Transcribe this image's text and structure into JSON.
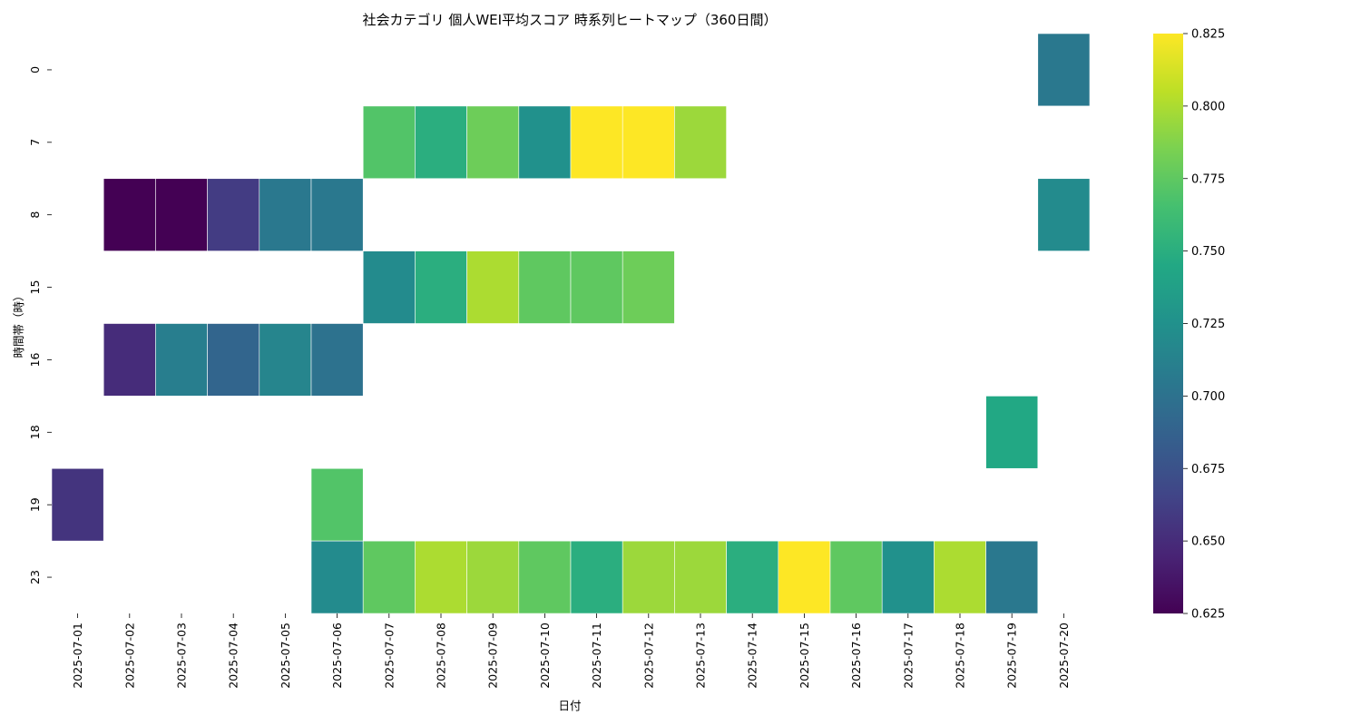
{
  "chart_data": {
    "type": "heatmap",
    "title": "社会カテゴリ 個人WEI平均スコア 時系列ヒートマップ（360日間）",
    "xlabel": "日付",
    "ylabel": "時間帯（時）",
    "x": [
      "2025-07-01",
      "2025-07-02",
      "2025-07-03",
      "2025-07-04",
      "2025-07-05",
      "2025-07-06",
      "2025-07-07",
      "2025-07-08",
      "2025-07-09",
      "2025-07-10",
      "2025-07-11",
      "2025-07-12",
      "2025-07-13",
      "2025-07-14",
      "2025-07-15",
      "2025-07-16",
      "2025-07-17",
      "2025-07-18",
      "2025-07-19",
      "2025-07-20"
    ],
    "y": [
      "0",
      "7",
      "8",
      "15",
      "16",
      "18",
      "19",
      "23"
    ],
    "values": [
      [
        null,
        null,
        null,
        null,
        null,
        null,
        null,
        null,
        null,
        null,
        null,
        null,
        null,
        null,
        null,
        null,
        null,
        null,
        null,
        0.705
      ],
      [
        null,
        null,
        null,
        null,
        null,
        null,
        0.77,
        0.75,
        0.78,
        0.725,
        0.825,
        0.825,
        0.795,
        null,
        null,
        null,
        null,
        null,
        null,
        null
      ],
      [
        null,
        0.625,
        0.625,
        0.66,
        0.705,
        0.705,
        null,
        null,
        null,
        null,
        null,
        null,
        null,
        null,
        null,
        null,
        null,
        null,
        null,
        0.72
      ],
      [
        null,
        null,
        null,
        null,
        null,
        null,
        0.72,
        0.75,
        0.8,
        0.775,
        0.775,
        0.78,
        null,
        null,
        null,
        null,
        null,
        null,
        null,
        null
      ],
      [
        null,
        0.65,
        0.71,
        0.69,
        0.715,
        0.7,
        null,
        null,
        null,
        null,
        null,
        null,
        null,
        null,
        null,
        null,
        null,
        null,
        null,
        null
      ],
      [
        null,
        null,
        null,
        null,
        null,
        null,
        null,
        null,
        null,
        null,
        null,
        null,
        null,
        null,
        null,
        null,
        null,
        null,
        0.745,
        null
      ],
      [
        0.655,
        null,
        null,
        null,
        null,
        0.77,
        null,
        null,
        null,
        null,
        null,
        null,
        null,
        null,
        null,
        null,
        null,
        null,
        null,
        null
      ],
      [
        null,
        null,
        null,
        null,
        null,
        0.72,
        0.775,
        0.8,
        0.795,
        0.775,
        0.75,
        0.795,
        0.795,
        0.75,
        0.825,
        0.775,
        0.725,
        0.8,
        0.705,
        null
      ]
    ],
    "colorbar": {
      "min": 0.625,
      "max": 0.825,
      "colormap": "viridis",
      "ticks": [
        "0.625",
        "0.650",
        "0.675",
        "0.700",
        "0.725",
        "0.750",
        "0.775",
        "0.800",
        "0.825"
      ]
    }
  }
}
